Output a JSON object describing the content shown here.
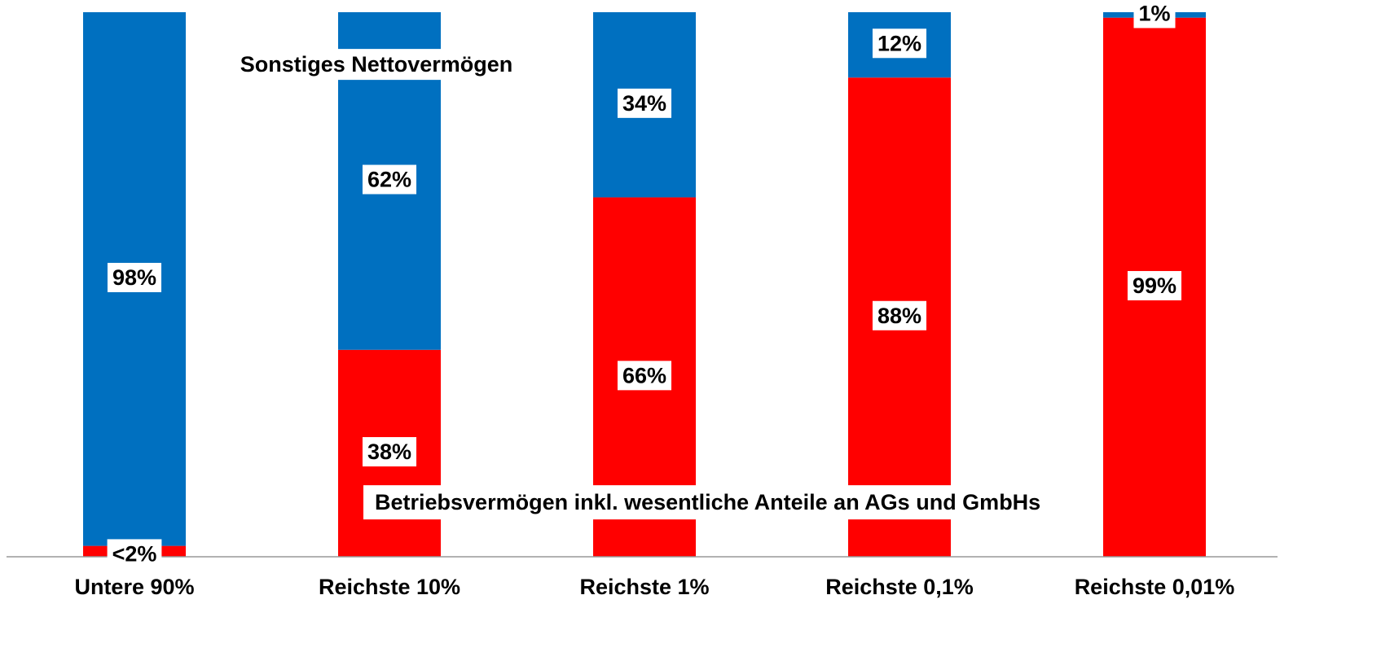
{
  "chart_data": {
    "type": "stacked_bar",
    "categories": [
      "Untere 90%",
      "Reichste 10%",
      "Reichste 1%",
      "Reichste 0,1%",
      "Reichste 0,01%"
    ],
    "series": [
      {
        "name": "Betriebsvermögen inkl. wesentliche Anteile an AGs und GmbHs",
        "color": "#FF0000",
        "values": [
          2,
          38,
          66,
          88,
          99
        ],
        "value_labels": [
          "<2%",
          "38%",
          "66%",
          "88%",
          "99%"
        ]
      },
      {
        "name": "Sonstiges Nettovermögen",
        "color": "#0070C0",
        "values": [
          98,
          62,
          34,
          12,
          1
        ],
        "value_labels": [
          "98%",
          "62%",
          "34%",
          "12%",
          "1%"
        ]
      }
    ],
    "ylim": [
      0,
      100
    ]
  }
}
